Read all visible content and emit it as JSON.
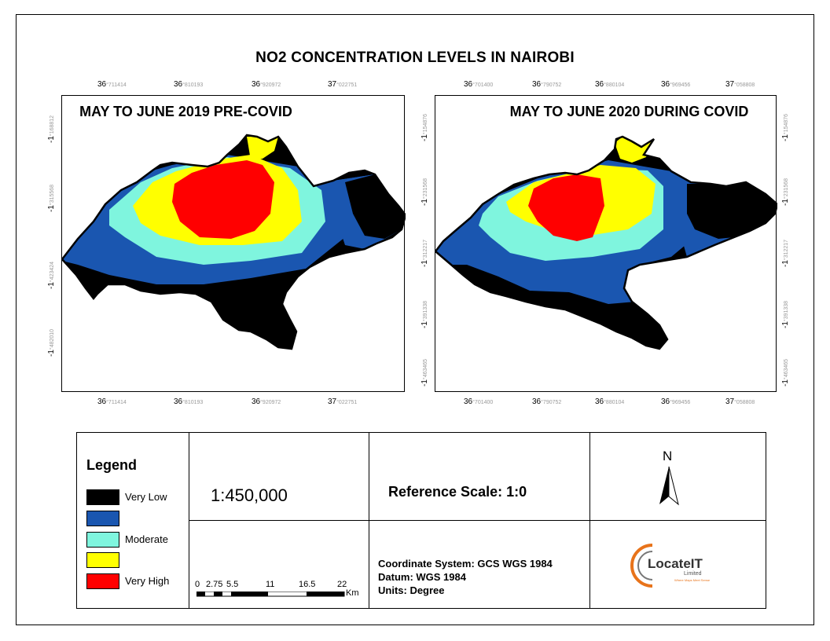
{
  "title": "NO2 CONCENTRATION LEVELS IN NAIROBI",
  "maps": [
    {
      "title": "MAY TO JUNE 2019 PRE-COVID",
      "top_ticks": [
        {
          "main": "36",
          "sub": "°711414"
        },
        {
          "main": "36",
          "sub": "°810193"
        },
        {
          "main": "36",
          "sub": "°920972"
        },
        {
          "main": "37",
          "sub": "°022751"
        }
      ],
      "bottom_ticks": [
        {
          "main": "36",
          "sub": "°711414"
        },
        {
          "main": "36",
          "sub": "°810193"
        },
        {
          "main": "36",
          "sub": "°920972"
        },
        {
          "main": "37",
          "sub": "°022751"
        }
      ],
      "left_ticks": [
        {
          "main": "-1",
          "sub": "°168812"
        },
        {
          "main": "-1",
          "sub": "°315568"
        },
        {
          "main": "-1",
          "sub": "°423424"
        },
        {
          "main": "-1",
          "sub": "°482010"
        }
      ]
    },
    {
      "title": "MAY TO JUNE 2020 DURING COVID",
      "top_ticks": [
        {
          "main": "36",
          "sub": "°701400"
        },
        {
          "main": "36",
          "sub": "°790752"
        },
        {
          "main": "36",
          "sub": "°880104"
        },
        {
          "main": "36",
          "sub": "°969456"
        },
        {
          "main": "37",
          "sub": "°058808"
        }
      ],
      "bottom_ticks": [
        {
          "main": "36",
          "sub": "°701400"
        },
        {
          "main": "36",
          "sub": "°790752"
        },
        {
          "main": "36",
          "sub": "°880104"
        },
        {
          "main": "36",
          "sub": "°969456"
        },
        {
          "main": "37",
          "sub": "°058808"
        }
      ],
      "left_ticks": [
        {
          "main": "-1",
          "sub": "°154876"
        },
        {
          "main": "-1",
          "sub": "°231568"
        },
        {
          "main": "-1",
          "sub": "°312217"
        },
        {
          "main": "-1",
          "sub": "°391338"
        },
        {
          "main": "-1",
          "sub": "°463465"
        }
      ],
      "right_ticks": [
        {
          "main": "-1",
          "sub": "°154876"
        },
        {
          "main": "-1",
          "sub": "°231568"
        },
        {
          "main": "-1",
          "sub": "°312217"
        },
        {
          "main": "-1",
          "sub": "°391338"
        },
        {
          "main": "-1",
          "sub": "°463465"
        }
      ]
    }
  ],
  "legend": {
    "title": "Legend",
    "items": [
      {
        "label": "Very Low",
        "color": "#000000"
      },
      {
        "label": "",
        "color": "#1a56b0"
      },
      {
        "label": "Moderate",
        "color": "#7ff5de"
      },
      {
        "label": "",
        "color": "#ffff00"
      },
      {
        "label": "Very High",
        "color": "#ff0000"
      }
    ]
  },
  "scale_ratio": "1:450,000",
  "scale_bar": {
    "labels": [
      "0",
      "2.75",
      "5.5",
      "11",
      "16.5",
      "22"
    ],
    "unit": "Km"
  },
  "reference_scale": "Reference Scale: 1:0",
  "coordinate_system": "Coordinate System: GCS WGS 1984",
  "datum": "Datum: WGS 1984",
  "units": "Units: Degree",
  "north_label": "N",
  "logo": {
    "name": "LocateIT",
    "tagline": "Limited",
    "motto": "Where Maps Meet Sense"
  }
}
